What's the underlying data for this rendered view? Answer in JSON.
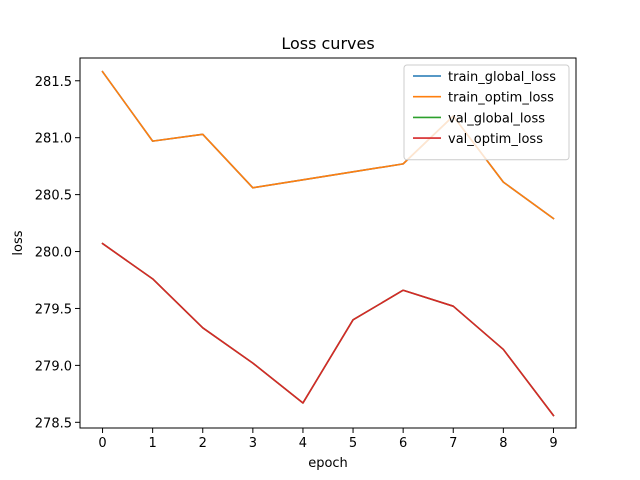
{
  "chart_data": {
    "type": "line",
    "title": "Loss curves",
    "xlabel": "epoch",
    "ylabel": "loss",
    "x": [
      0,
      1,
      2,
      3,
      4,
      5,
      6,
      7,
      8,
      9
    ],
    "xlim": [
      -0.45,
      9.45
    ],
    "ylim": [
      278.45,
      281.7
    ],
    "xticks": [
      0,
      1,
      2,
      3,
      4,
      5,
      6,
      7,
      8,
      9
    ],
    "xtick_labels": [
      "0",
      "1",
      "2",
      "3",
      "4",
      "5",
      "6",
      "7",
      "8",
      "9"
    ],
    "yticks": [
      278.5,
      279.0,
      279.5,
      280.0,
      280.5,
      281.0,
      281.5
    ],
    "ytick_labels": [
      "278.5",
      "279.0",
      "279.5",
      "280.0",
      "280.5",
      "281.0",
      "281.5"
    ],
    "grid": false,
    "legend_position": "top-right",
    "series": [
      {
        "name": "train_global_loss",
        "color": "#1f77b4",
        "values": [
          281.58,
          280.97,
          281.03,
          280.56,
          280.63,
          280.7,
          280.77,
          281.19,
          280.61,
          280.29
        ]
      },
      {
        "name": "train_optim_loss",
        "color": "#ff7f0e",
        "values": [
          281.58,
          280.97,
          281.03,
          280.56,
          280.63,
          280.7,
          280.77,
          281.19,
          280.61,
          280.29
        ]
      },
      {
        "name": "val_global_loss",
        "color": "#2ca02c",
        "values": [
          280.07,
          279.76,
          279.33,
          279.02,
          278.67,
          279.4,
          279.66,
          279.52,
          279.14,
          278.56
        ]
      },
      {
        "name": "val_optim_loss",
        "color": "#d62728",
        "values": [
          280.07,
          279.76,
          279.33,
          279.02,
          278.67,
          279.4,
          279.66,
          279.52,
          279.14,
          278.56
        ]
      }
    ]
  }
}
